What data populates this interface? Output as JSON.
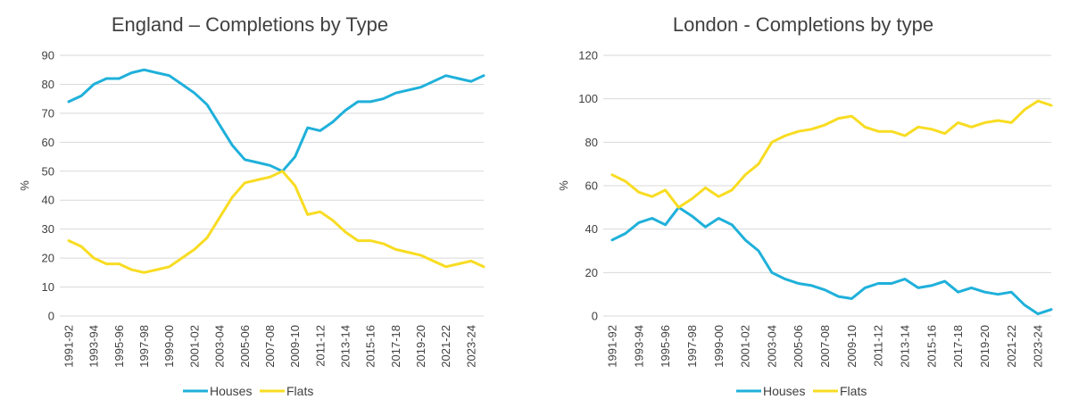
{
  "chart_data": [
    {
      "type": "line",
      "title": "England – Completions by Type",
      "ylabel": "%",
      "xlabel": "",
      "ylim": [
        0,
        90
      ],
      "yticks": [
        0,
        10,
        20,
        30,
        40,
        50,
        60,
        70,
        80,
        90
      ],
      "legend_position": "bottom",
      "grid": true,
      "x": [
        "1991-92",
        "1992-93",
        "1993-94",
        "1994-95",
        "1995-96",
        "1996-97",
        "1997-98",
        "1998-99",
        "1999-00",
        "2000-01",
        "2001-02",
        "2002-03",
        "2003-04",
        "2004-05",
        "2005-06",
        "2006-07",
        "2007-08",
        "2008-09",
        "2009-10",
        "2010-11",
        "2011-12",
        "2012-13",
        "2013-14",
        "2014-15",
        "2015-16",
        "2016-17",
        "2017-18",
        "2018-19",
        "2019-20",
        "2020-21",
        "2021-22",
        "2022-23",
        "2023-24",
        "2024-25"
      ],
      "x_tick_labels": [
        "1991-92",
        "1993-94",
        "1995-96",
        "1997-98",
        "1999-00",
        "2001-02",
        "2003-04",
        "2005-06",
        "2007-08",
        "2009-10",
        "2011-12",
        "2013-14",
        "2015-16",
        "2017-18",
        "2019-20",
        "2021-22",
        "2023-24"
      ],
      "series": [
        {
          "name": "Houses",
          "color": "#1FB0DA",
          "values": [
            74,
            76,
            80,
            82,
            82,
            84,
            85,
            84,
            83,
            80,
            77,
            73,
            66,
            59,
            54,
            53,
            52,
            50,
            55,
            65,
            64,
            67,
            71,
            74,
            74,
            75,
            77,
            78,
            79,
            81,
            83,
            82,
            81,
            83
          ]
        },
        {
          "name": "Flats",
          "color": "#F8DC22",
          "values": [
            26,
            24,
            20,
            18,
            18,
            16,
            15,
            16,
            17,
            20,
            23,
            27,
            34,
            41,
            46,
            47,
            48,
            50,
            45,
            35,
            36,
            33,
            29,
            26,
            26,
            25,
            23,
            22,
            21,
            19,
            17,
            18,
            19,
            17
          ]
        }
      ]
    },
    {
      "type": "line",
      "title": "London - Completions by type",
      "ylabel": "%",
      "xlabel": "",
      "ylim": [
        0,
        120
      ],
      "yticks": [
        0,
        20,
        40,
        60,
        80,
        100,
        120
      ],
      "legend_position": "bottom",
      "grid": true,
      "x": [
        "1991-92",
        "1992-93",
        "1993-94",
        "1994-95",
        "1995-96",
        "1996-97",
        "1997-98",
        "1998-99",
        "1999-00",
        "2000-01",
        "2001-02",
        "2002-03",
        "2003-04",
        "2004-05",
        "2005-06",
        "2006-07",
        "2007-08",
        "2008-09",
        "2009-10",
        "2010-11",
        "2011-12",
        "2012-13",
        "2013-14",
        "2014-15",
        "2015-16",
        "2016-17",
        "2017-18",
        "2018-19",
        "2019-20",
        "2020-21",
        "2021-22",
        "2022-23",
        "2023-24",
        "2024-25"
      ],
      "x_tick_labels": [
        "1991-92",
        "1993-94",
        "1995-96",
        "1997-98",
        "1999-00",
        "2001-02",
        "2003-04",
        "2005-06",
        "2007-08",
        "2009-10",
        "2011-12",
        "2013-14",
        "2015-16",
        "2017-18",
        "2019-20",
        "2021-22",
        "2023-24"
      ],
      "series": [
        {
          "name": "Houses",
          "color": "#1FB0DA",
          "values": [
            35,
            38,
            43,
            45,
            42,
            50,
            46,
            41,
            45,
            42,
            35,
            30,
            20,
            17,
            15,
            14,
            12,
            9,
            8,
            13,
            15,
            15,
            17,
            13,
            14,
            16,
            11,
            13,
            11,
            10,
            11,
            5,
            1,
            3
          ]
        },
        {
          "name": "Flats",
          "color": "#F8DC22",
          "values": [
            65,
            62,
            57,
            55,
            58,
            50,
            54,
            59,
            55,
            58,
            65,
            70,
            80,
            83,
            85,
            86,
            88,
            91,
            92,
            87,
            85,
            85,
            83,
            87,
            86,
            84,
            89,
            87,
            89,
            90,
            89,
            95,
            99,
            97
          ]
        }
      ]
    }
  ]
}
